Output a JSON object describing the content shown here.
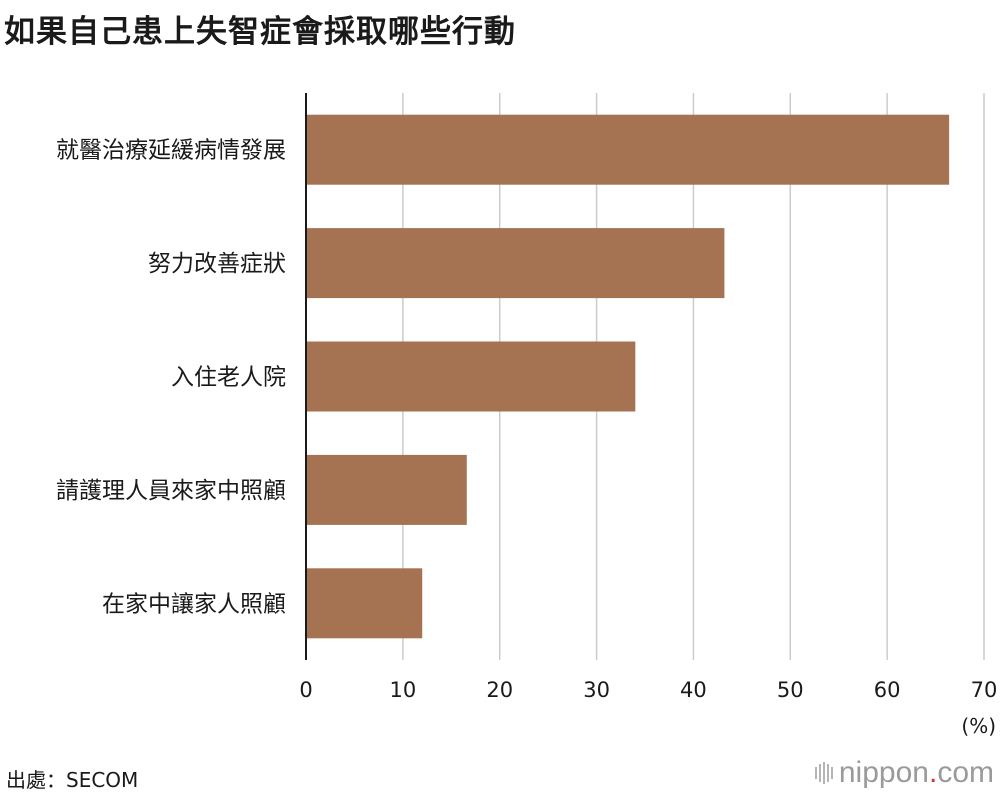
{
  "title": "如果自己患上失智症會採取哪些行動",
  "source": "出處：SECOM",
  "logo": {
    "name": "nippon",
    "dot": ".",
    "suffix": "com"
  },
  "colors": {
    "bar": "#a57252",
    "grid": "#cccccc",
    "axis": "#1a1a1a",
    "text": "#1a1a1a"
  },
  "chart_data": {
    "type": "bar",
    "orientation": "horizontal",
    "categories": [
      "就醫治療延緩病情發展",
      "努力改善症狀",
      "入住老人院",
      "請護理人員來家中照顧",
      "在家中讓家人照顧"
    ],
    "values": [
      66.4,
      43.2,
      34.0,
      16.6,
      12.0
    ],
    "xlim": [
      0,
      70
    ],
    "xticks": [
      0,
      10,
      20,
      30,
      40,
      50,
      60,
      70
    ],
    "xlabel": "(%)",
    "grid": true
  }
}
